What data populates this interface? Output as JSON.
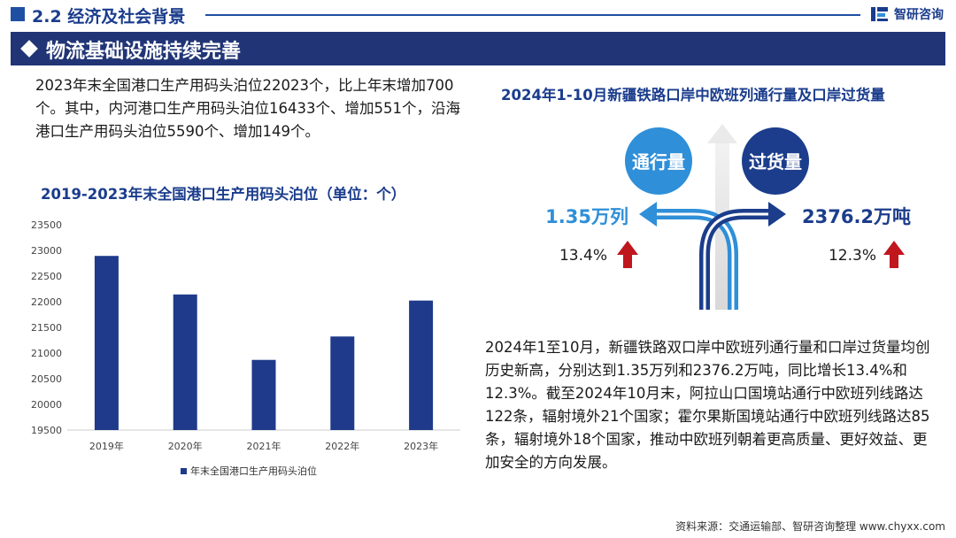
{
  "header": {
    "section_title": "2.2 经济及社会背景",
    "brand_name": "智研咨询"
  },
  "banner": {
    "title": "物流基础设施持续完善"
  },
  "left": {
    "paragraph": "2023年末全国港口生产用码头泊位22023个，比上年末增加700个。其中，内河港口生产用码头泊位16433个、增加551个，沿海港口生产用码头泊位5590个、增加149个。",
    "chart_title": "2019-2023年末全国港口生产用码头泊位（单位：个）"
  },
  "chart_data": {
    "type": "bar",
    "title": "2019-2023年末全国港口生产用码头泊位（单位：个）",
    "categories": [
      "2019年",
      "2020年",
      "2021年",
      "2022年",
      "2023年"
    ],
    "series": [
      {
        "name": "年末全国港口生产用码头泊位",
        "values": [
          22893,
          22142,
          20867,
          21323,
          22023
        ]
      }
    ],
    "ylim": [
      19500,
      23500
    ],
    "yticks": [
      19500,
      20000,
      20500,
      21000,
      21500,
      22000,
      22500,
      23000,
      23500
    ],
    "bar_color": "#1f3a8a",
    "grid": false,
    "legend_position": "bottom"
  },
  "right": {
    "title": "2024年1-10月新疆铁路口岸中欧班列通行量及口岸过货量",
    "flow": {
      "left_label": "通行量",
      "right_label": "过货量",
      "left_value": "1.35万列",
      "right_value": "2376.2万吨",
      "left_growth": "13.4%",
      "right_growth": "12.3%",
      "left_circle_color": "#2f8fd8",
      "right_circle_color": "#1c3d8c",
      "growth_arrow_color": "#c0161e"
    },
    "paragraph": "2024年1至10月，新疆铁路双口岸中欧班列通行量和口岸过货量均创历史新高，分别达到1.35万列和2376.2万吨，同比增长13.4%和12.3%。截至2024年10月末，阿拉山口国境站通行中欧班列线路达122条，辐射境外21个国家；霍尔果斯国境站通行中欧班列线路达85条，辐射境外18个国家，推动中欧班列朝着更高质量、更好效益、更加安全的方向发展。"
  },
  "source": "资料来源：交通运输部、智研咨询整理  www.chyxx.com"
}
